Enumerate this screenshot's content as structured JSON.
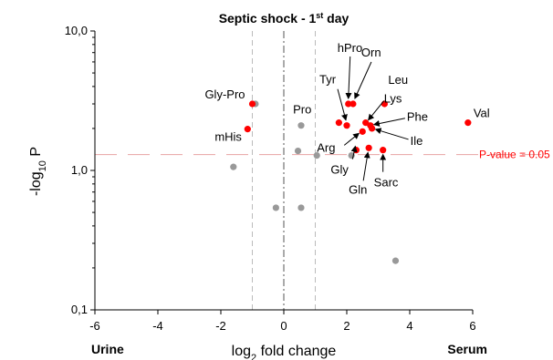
{
  "chart_data": {
    "type": "scatter",
    "title": "Septic shock - 1",
    "title_sup": "st",
    "title_suffix": " day",
    "xlabel_prefix": "log",
    "xlabel_sub": "2",
    "xlabel_suffix": " fold change",
    "ylabel_prefix": "-log",
    "ylabel_sub": "10",
    "ylabel_suffix": " P",
    "xlim": [
      -6,
      6
    ],
    "ylim": [
      0.1,
      10
    ],
    "y_scale": "log",
    "x_ticks": [
      "-6",
      "-4",
      "-2",
      "0",
      "2",
      "4",
      "6"
    ],
    "y_ticks": [
      "10,0",
      "1,0",
      "0,1"
    ],
    "grid": false,
    "left_corner_label": "Urine",
    "right_corner_label": "Serum",
    "threshold": {
      "label": "P-value = 0.05",
      "y": 1.3,
      "color": "#e8a3a3"
    },
    "fold_change_lines": [
      -1,
      0,
      1
    ],
    "colors": {
      "significant": "#ff0000",
      "nonsignificant": "#999999",
      "threshold_text": "#ff0000"
    },
    "significant": [
      {
        "name": "Val",
        "x": 5.85,
        "y": 2.2
      },
      {
        "name": "Leu",
        "x": 3.2,
        "y": 3.0
      },
      {
        "name": "Orn",
        "x": 2.2,
        "y": 3.0
      },
      {
        "name": "hPro",
        "x": 2.05,
        "y": 3.0
      },
      {
        "name": "Tyr",
        "x": 2.0,
        "y": 2.1
      },
      {
        "name": "Pro",
        "x": 1.75,
        "y": 2.2
      },
      {
        "name": "Lys",
        "x": 2.6,
        "y": 2.2
      },
      {
        "name": "Phe",
        "x": 2.75,
        "y": 2.1
      },
      {
        "name": "Ile",
        "x": 2.8,
        "y": 2.0
      },
      {
        "name": "Arg",
        "x": 2.5,
        "y": 1.9
      },
      {
        "name": "Gly",
        "x": 2.3,
        "y": 1.4
      },
      {
        "name": "Gln",
        "x": 2.7,
        "y": 1.45
      },
      {
        "name": "Sarc",
        "x": 3.15,
        "y": 1.4
      },
      {
        "name": "Gly-Pro",
        "x": -1.0,
        "y": 3.0
      },
      {
        "name": "mHis",
        "x": -1.15,
        "y": 1.98
      }
    ],
    "nonsignificant": [
      {
        "x": -0.9,
        "y": 3.0
      },
      {
        "x": -1.6,
        "y": 1.06
      },
      {
        "x": 0.55,
        "y": 2.1
      },
      {
        "x": 0.45,
        "y": 1.38
      },
      {
        "x": 1.05,
        "y": 1.28
      },
      {
        "x": 2.15,
        "y": 1.28
      },
      {
        "x": -0.25,
        "y": 0.54
      },
      {
        "x": 0.55,
        "y": 0.54
      },
      {
        "x": 3.55,
        "y": 0.225
      }
    ]
  }
}
